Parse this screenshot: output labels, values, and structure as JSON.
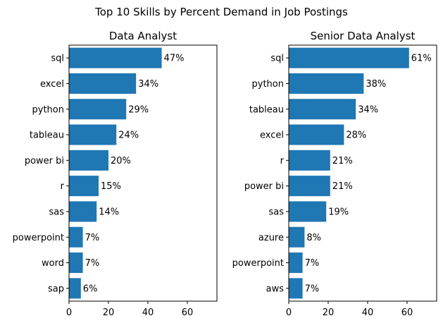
{
  "figure": {
    "title": "Top 10 Skills by Percent Demand in Job Postings",
    "bar_color": "#1f77b4"
  },
  "chart_data": [
    {
      "type": "bar",
      "orientation": "horizontal",
      "title": "Data Analyst",
      "xlabel": "",
      "ylabel": "",
      "xlim": [
        0,
        75
      ],
      "xticks": [
        0,
        20,
        40,
        60
      ],
      "grid": false,
      "categories": [
        "sql",
        "excel",
        "python",
        "tableau",
        "power bi",
        "r",
        "sas",
        "powerpoint",
        "word",
        "sap"
      ],
      "values": [
        47,
        34,
        29,
        24,
        20,
        15,
        14,
        7,
        7,
        6
      ],
      "data_labels": [
        "47%",
        "34%",
        "29%",
        "24%",
        "20%",
        "15%",
        "14%",
        "7%",
        "7%",
        "6%"
      ]
    },
    {
      "type": "bar",
      "orientation": "horizontal",
      "title": "Senior Data Analyst",
      "xlabel": "",
      "ylabel": "",
      "xlim": [
        0,
        75
      ],
      "xticks": [
        0,
        20,
        40,
        60
      ],
      "grid": false,
      "categories": [
        "sql",
        "python",
        "tableau",
        "excel",
        "r",
        "power bi",
        "sas",
        "azure",
        "powerpoint",
        "aws"
      ],
      "values": [
        61,
        38,
        34,
        28,
        21,
        21,
        19,
        8,
        7,
        7
      ],
      "data_labels": [
        "61%",
        "38%",
        "34%",
        "28%",
        "21%",
        "21%",
        "19%",
        "8%",
        "7%",
        "7%"
      ]
    }
  ]
}
